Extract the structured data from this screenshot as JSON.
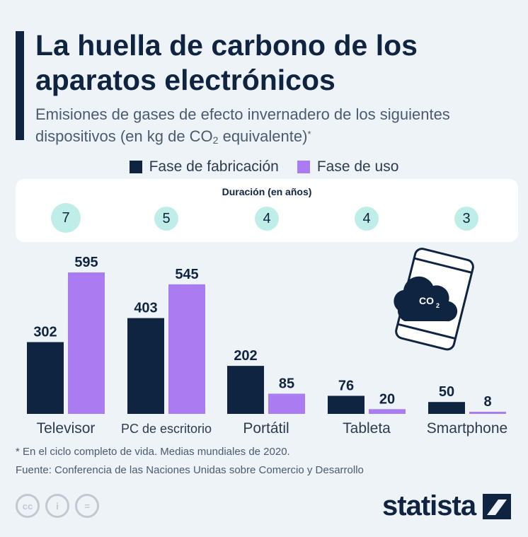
{
  "header": {
    "title": "La huella de carbono de los aparatos electrónicos",
    "subtitle_main": "Emisiones de gases de efecto invernadero de los siguientes dispositivos (en kg de CO",
    "subtitle_sub": "2",
    "subtitle_end": " equivalente)",
    "subtitle_mark": "*"
  },
  "legend": {
    "manufacturing": "Fase de fabricación",
    "use": "Fase de uso"
  },
  "duration": {
    "title": "Duración (en años)",
    "values": [
      "7",
      "5",
      "4",
      "4",
      "3"
    ]
  },
  "illustration": {
    "cloud_text": "CO",
    "cloud_sub": "2",
    "icon": "phone-co2-icon"
  },
  "colors": {
    "manufacturing": "#0f2440",
    "use": "#a97cf2",
    "badge": "#bfeee9"
  },
  "chart_data": {
    "type": "bar",
    "categories": [
      "Televisor",
      "PC de escritorio",
      "Portátil",
      "Tableta",
      "Smartphone"
    ],
    "series": [
      {
        "name": "Fase de fabricación",
        "values": [
          302,
          403,
          202,
          76,
          50
        ]
      },
      {
        "name": "Fase de uso",
        "values": [
          595,
          545,
          85,
          20,
          8
        ]
      }
    ],
    "ylim": [
      0,
      700
    ]
  },
  "footer": {
    "footnote": "* En el ciclo completo de vida. Medias mundiales de 2020.",
    "source": "Fuente: Conferencia de las Naciones Unidas sobre Comercio y Desarrollo",
    "cc_labels": [
      "cc",
      "i",
      "="
    ],
    "logo": "statista"
  }
}
